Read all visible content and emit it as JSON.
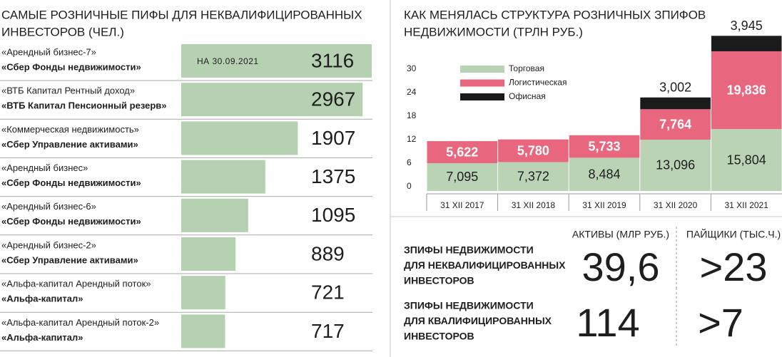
{
  "chart_data": [
    {
      "type": "hbar",
      "title": [
        "САМЫЕ РОЗНИЧНЫЕ ПИФЫ ДЛЯ НЕКВАЛИФИЦИРОВАННЫХ",
        "ИНВЕСТОРОВ (ЧЕЛ.)"
      ],
      "annotation": "НА 30.09.2021",
      "categories": [
        [
          "«Арендный бизнес-7»",
          "«Сбер Фонды недвижимости»"
        ],
        [
          "«ВТБ Капитал Рентный доход»",
          "«ВТБ Капитал Пенсионный резерв»"
        ],
        [
          "«Коммерческая недвижимость»",
          "«Сбер Управление активами»"
        ],
        [
          "«Арендный бизнес»",
          "«Сбер Фонды недвижимости»"
        ],
        [
          "«Арендный бизнес-6»",
          "«Сбер Фонды недвижимости»"
        ],
        [
          "«Арендный бизнес-2»",
          "«Сбер Управление активами»"
        ],
        [
          "«Альфа-капитал Арендный поток»",
          "«Альфа-капитал»"
        ],
        [
          "«Альфа-капитал Арендный поток-2»",
          "«Альфа-капитал»"
        ]
      ],
      "values": [
        3116,
        2967,
        1907,
        1375,
        1095,
        889,
        721,
        717
      ],
      "color": "#b6d1b1"
    },
    {
      "type": "stacked_bar",
      "title": [
        "КАК МЕНЯЛАСЬ СТРУКТУРА РОЗНИЧНЫХ ЗПИФОВ",
        "НЕДВИЖИМОСТИ (ТРЛН РУБ.)"
      ],
      "categories": [
        "31 XII 2017",
        "31 XII 2018",
        "31 XII 2019",
        "31 XII 2020",
        "31 XII 2021"
      ],
      "series": [
        {
          "name": "Торговая",
          "color": "#b9d3b4",
          "values": [
            7.095,
            7.372,
            8.484,
            13.096,
            15.804
          ],
          "value_labels": [
            "7,095",
            "7,372",
            "8,484",
            "13,096",
            "15,804"
          ]
        },
        {
          "name": "Логистическая",
          "color": "#e8677f",
          "values": [
            5.622,
            5.78,
            5.733,
            7.764,
            19.836
          ],
          "value_labels": [
            "5,622",
            "5,780",
            "5,733",
            "7,764",
            "19,836"
          ]
        },
        {
          "name": "Офисная",
          "color": "#1b1b1b",
          "values": [
            null,
            null,
            null,
            3.002,
            3.945
          ],
          "value_labels": [
            null,
            null,
            null,
            "3,002",
            "3,945"
          ]
        }
      ],
      "ylim": [
        0,
        40
      ],
      "yticks": [
        0,
        6,
        12,
        18,
        24,
        30
      ]
    }
  ],
  "table": {
    "columns": [
      "АКТИВЫ (МЛР РУБ.)",
      "ПАЙЩИКИ (ТЫС.Ч.)"
    ],
    "rows": [
      {
        "label": [
          "ЗПИФЫ НЕДВИЖИМОСТИ",
          "ДЛЯ НЕКВАЛИФИЦИРОВАННЫХ",
          "ИНВЕСТОРОВ"
        ],
        "cells": [
          "39,6",
          ">23"
        ]
      },
      {
        "label": [
          "ЗПИФЫ НЕДВИЖИМОСТИ",
          "ДЛЯ КВАЛИФИЦИРОВАННЫХ",
          "ИНВЕСТОРОВ"
        ],
        "cells": [
          "114",
          ">7"
        ]
      }
    ]
  }
}
